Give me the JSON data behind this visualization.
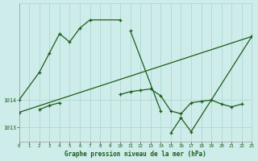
{
  "title": "Graphe pression niveau de la mer (hPa)",
  "bg_color": "#ceecea",
  "grid_color": "#a8d4cc",
  "line_color": "#1a5c1a",
  "x_min": 0,
  "x_max": 23,
  "y_min": 1012.5,
  "y_max": 1017.5,
  "y_ticks": [
    1013,
    1014
  ],
  "x_ticks": [
    0,
    1,
    2,
    3,
    4,
    5,
    6,
    7,
    8,
    9,
    10,
    11,
    12,
    13,
    14,
    15,
    16,
    17,
    18,
    19,
    20,
    21,
    22,
    23
  ],
  "line1_x": [
    0,
    2,
    3,
    4,
    5,
    6,
    7,
    10,
    11,
    14,
    15,
    16,
    17,
    23
  ],
  "line1_y": [
    1014.0,
    1015.0,
    1015.7,
    1016.4,
    1016.1,
    1016.6,
    1016.9,
    1016.9,
    1016.5,
    1013.6,
    1012.8,
    1013.35,
    1012.85,
    1016.3
  ],
  "line2_x": [
    2,
    3,
    4,
    10,
    11,
    12,
    13,
    14,
    15,
    16,
    17,
    18,
    19,
    20,
    21,
    22
  ],
  "line2_y": [
    1013.65,
    1013.8,
    1013.9,
    1014.2,
    1014.3,
    1014.35,
    1014.4,
    1014.15,
    1013.6,
    1013.5,
    1013.9,
    1013.95,
    1014.0,
    1013.85,
    1013.75,
    1013.85
  ],
  "line3_x": [
    0,
    23
  ],
  "line3_y": [
    1013.55,
    1016.3
  ],
  "line1_break1_end": 10,
  "line1_break1_start": 7,
  "line1_break2_end": 14,
  "line1_break2_start": 11
}
